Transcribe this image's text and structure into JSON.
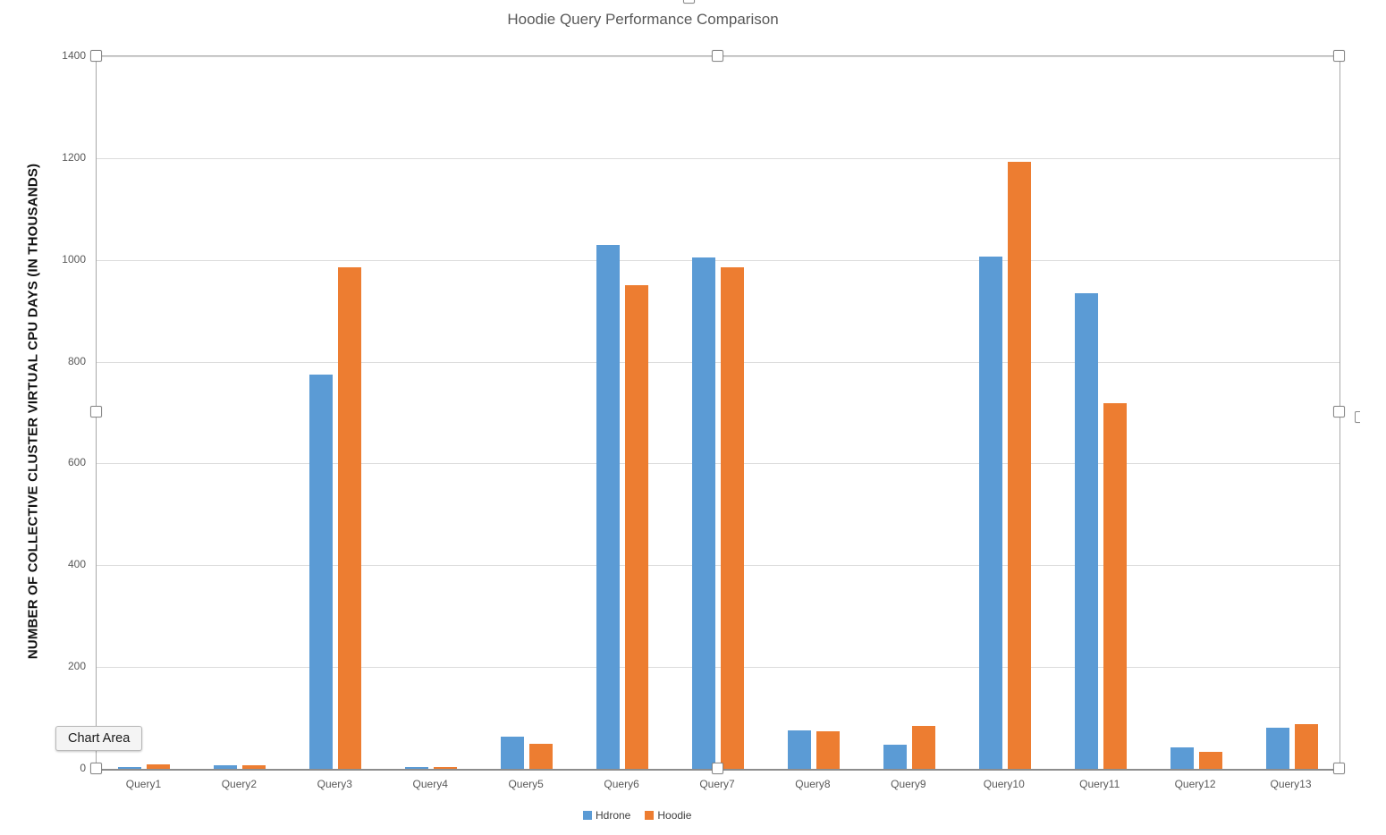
{
  "chart_data": {
    "type": "bar",
    "title": "Hoodie Query Performance Comparison",
    "xlabel": "",
    "ylabel": "NUMBER OF COLLECTIVE CLUSTER VIRTUAL CPU DAYS (IN THOUSANDS)",
    "categories": [
      "Query1",
      "Query2",
      "Query3",
      "Query4",
      "Query5",
      "Query6",
      "Query7",
      "Query8",
      "Query9",
      "Query10",
      "Query11",
      "Query12",
      "Query13"
    ],
    "series": [
      {
        "name": "Hdrone",
        "color": "#5B9BD5",
        "values": [
          4,
          7,
          775,
          3,
          63,
          1030,
          1005,
          75,
          47,
          1007,
          935,
          42,
          81
        ]
      },
      {
        "name": "Hoodie",
        "color": "#ED7D31",
        "values": [
          8,
          7,
          985,
          4,
          50,
          950,
          985,
          73,
          84,
          1193,
          718,
          33,
          88
        ]
      }
    ],
    "ylim": [
      0,
      1400
    ],
    "y_ticks": [
      0,
      200,
      400,
      600,
      800,
      1000,
      1200,
      1400
    ],
    "grid": true,
    "legend_position": "bottom"
  },
  "tooltip": {
    "label": "Chart Area"
  },
  "colors": {
    "series_hdrone": "#5B9BD5",
    "series_hoodie": "#ED7D31",
    "gridline": "#DCDCDC",
    "axis_line": "#8C8C8C",
    "tick_text": "#595959",
    "title_text": "#595959"
  }
}
